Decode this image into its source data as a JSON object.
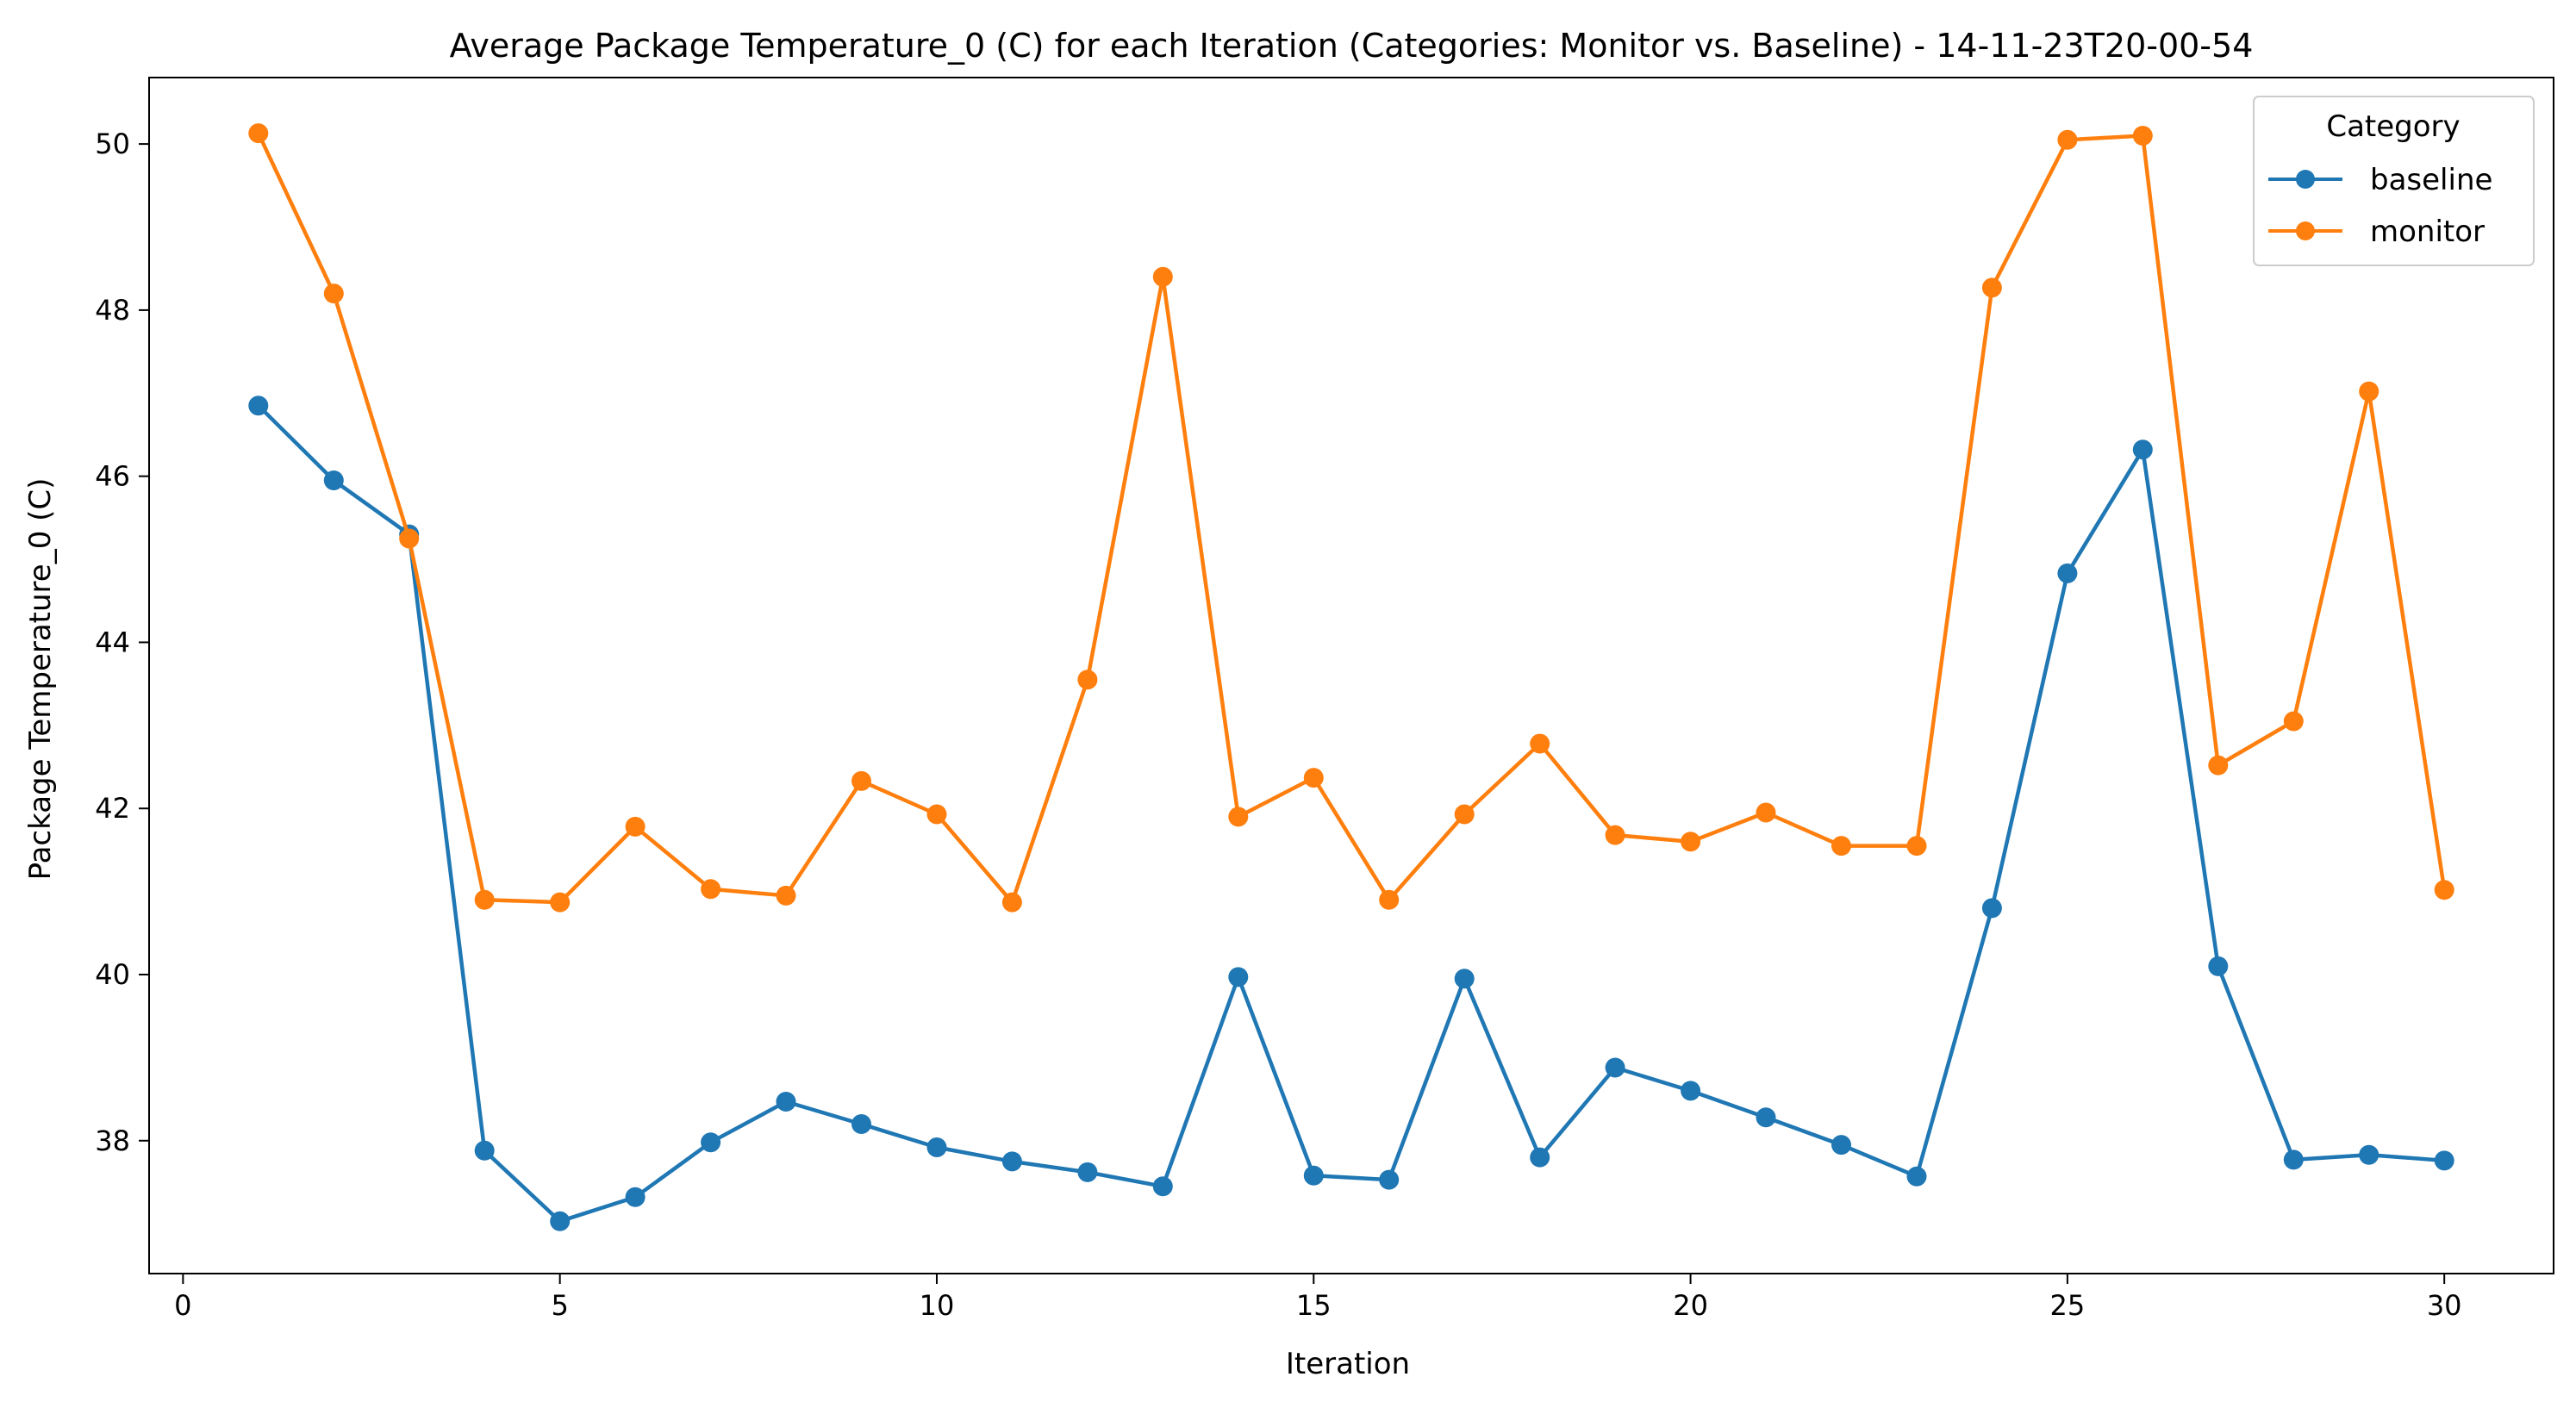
{
  "chart_data": {
    "type": "line",
    "title": "Average Package Temperature_0 (C) for each Iteration (Categories: Monitor vs. Baseline) - 14-11-23T20-00-54",
    "xlabel": "Iteration",
    "ylabel": "Package Temperature_0 (C)",
    "xlim": [
      -0.45,
      31.45
    ],
    "ylim": [
      36.4,
      50.8
    ],
    "xticks": [
      0,
      5,
      10,
      15,
      20,
      25,
      30
    ],
    "yticks": [
      38,
      40,
      42,
      44,
      46,
      48,
      50
    ],
    "grid": false,
    "legend": {
      "title": "Category",
      "placement": "top-right"
    },
    "x": [
      1,
      2,
      3,
      4,
      5,
      6,
      7,
      8,
      9,
      10,
      11,
      12,
      13,
      14,
      15,
      16,
      17,
      18,
      19,
      20,
      21,
      22,
      23,
      24,
      25,
      26,
      27,
      28,
      29,
      30
    ],
    "series": [
      {
        "name": "baseline",
        "color": "#1f77b4",
        "values": [
          46.85,
          45.95,
          45.3,
          37.88,
          37.03,
          37.32,
          37.98,
          38.47,
          38.2,
          37.92,
          37.75,
          37.62,
          37.45,
          39.97,
          37.58,
          37.53,
          39.95,
          37.8,
          38.88,
          38.6,
          38.28,
          37.95,
          37.57,
          40.8,
          44.83,
          46.32,
          40.1,
          37.77,
          37.83,
          37.76
        ]
      },
      {
        "name": "monitor",
        "color": "#ff7f0e",
        "values": [
          50.13,
          48.2,
          45.25,
          40.9,
          40.87,
          41.78,
          41.03,
          40.95,
          42.33,
          41.93,
          40.87,
          43.55,
          48.4,
          41.9,
          42.37,
          40.9,
          41.93,
          42.78,
          41.68,
          41.6,
          41.95,
          41.55,
          41.55,
          48.27,
          50.05,
          50.1,
          42.52,
          43.05,
          47.02,
          41.02
        ]
      }
    ]
  }
}
